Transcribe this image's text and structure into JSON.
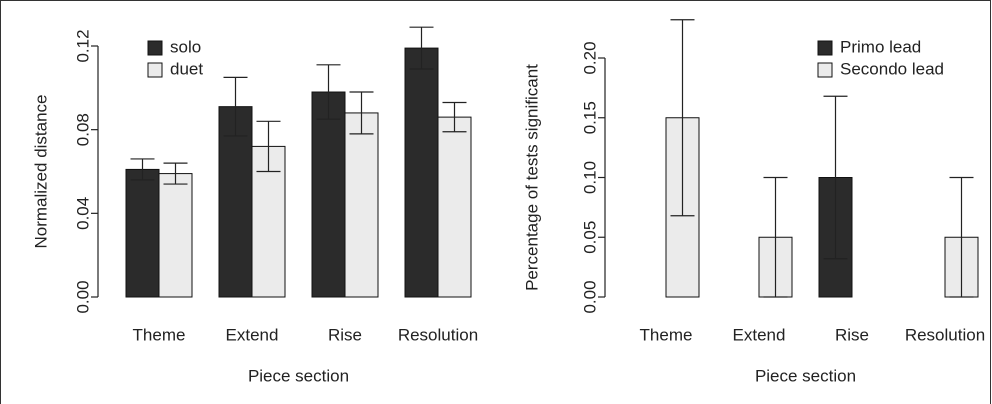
{
  "chart_data": [
    {
      "type": "bar",
      "x_label": "Piece section",
      "y_label": "Normalized distance",
      "categories": [
        "Theme",
        "Extend",
        "Rise",
        "Resolution"
      ],
      "series": [
        {
          "name": "solo",
          "color": "#2b2b2b",
          "values": [
            0.061,
            0.091,
            0.098,
            0.119
          ],
          "errors": [
            0.005,
            0.014,
            0.013,
            0.01
          ]
        },
        {
          "name": "duet",
          "color": "#ebebeb",
          "values": [
            0.059,
            0.072,
            0.088,
            0.086
          ],
          "errors": [
            0.005,
            0.012,
            0.01,
            0.007
          ]
        }
      ],
      "ylim": [
        0,
        0.12
      ],
      "yticks": [
        {
          "value": 0,
          "label": "0.00"
        },
        {
          "value": 0.04,
          "label": "0.04"
        },
        {
          "value": 0.08,
          "label": "0.08"
        },
        {
          "value": 0.12,
          "label": "0.12"
        }
      ],
      "legend": "top-left"
    },
    {
      "type": "bar",
      "x_label": "Piece section",
      "y_label": "Percentage of tests significant",
      "categories": [
        "Theme",
        "Extend",
        "Rise",
        "Resolution"
      ],
      "series": [
        {
          "name": "Primo lead",
          "color": "#2b2b2b",
          "values": [
            0,
            0,
            0.1,
            0
          ],
          "errors": [
            0,
            0,
            0.068,
            0
          ]
        },
        {
          "name": "Secondo lead",
          "color": "#ebebeb",
          "values": [
            0.15,
            0.05,
            0,
            0.05
          ],
          "errors": [
            0.082,
            0.05,
            0,
            0.05
          ]
        }
      ],
      "ylim": [
        0,
        0.2
      ],
      "yticks": [
        {
          "value": 0,
          "label": "0.00"
        },
        {
          "value": 0.05,
          "label": "0.05"
        },
        {
          "value": 0.1,
          "label": "0.10"
        },
        {
          "value": 0.15,
          "label": "0.15"
        },
        {
          "value": 0.2,
          "label": "0.20"
        }
      ],
      "legend": "top-right"
    }
  ]
}
